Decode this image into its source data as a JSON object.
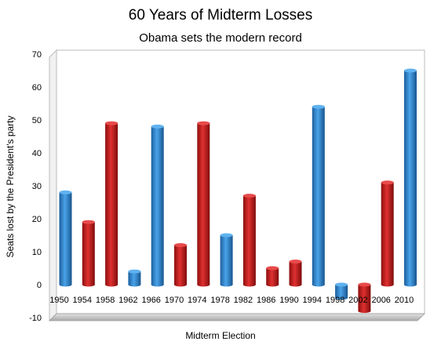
{
  "chart_data": {
    "type": "bar",
    "title": "60 Years of Midterm Losses",
    "subtitle": "Obama sets the modern record",
    "xlabel": "Midterm Election",
    "ylabel": "Seats lost by the President's party",
    "ylim": [
      -10,
      70
    ],
    "yticks": [
      70,
      60,
      50,
      40,
      30,
      20,
      10,
      0,
      -10
    ],
    "grid": false,
    "categories": [
      "1950",
      "1954",
      "1958",
      "1962",
      "1966",
      "1970",
      "1974",
      "1978",
      "1982",
      "1986",
      "1990",
      "1994",
      "1998",
      "2002",
      "2006",
      "2010"
    ],
    "values": [
      28,
      19,
      49,
      4,
      48,
      12,
      49,
      15,
      27,
      5,
      7,
      54,
      -4,
      -8,
      31,
      65
    ],
    "bar_colors": [
      "blue",
      "red",
      "red",
      "blue",
      "blue",
      "red",
      "red",
      "blue",
      "red",
      "red",
      "red",
      "blue",
      "blue",
      "red",
      "red",
      "blue"
    ],
    "colors": {
      "blue": "#2f86cf",
      "red": "#c81b1b"
    }
  }
}
